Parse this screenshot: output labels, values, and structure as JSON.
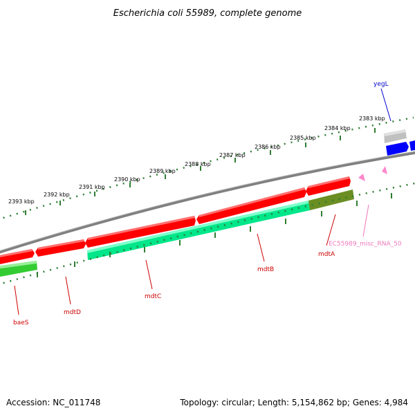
{
  "title": "Escherichia coli 55989, complete genome",
  "footer": {
    "accession": "Accession: NC_011748",
    "summary": "Topology: circular; Length: 5,154,862 bp; Genes: 4,984"
  },
  "colors": {
    "forward_cds": "#ff0000",
    "reverse_cds": "#00e68a",
    "green_gene": "#33cc33",
    "olive_gene": "#6b8e23",
    "blue_gene": "#0000ff",
    "grey_gene": "#b0b0b0",
    "misc_rna": "#ff66b2",
    "backbone": "#808080",
    "tick": "#2e7d32",
    "red_label": "#cc0000",
    "pink_label": "#ee77bb",
    "blue_label": "#0000cc"
  },
  "tick_labels": [
    "2393 kbp",
    "2392 kbp",
    "2391 kbp",
    "2390 kbp",
    "2389 kbp",
    "2388 kbp",
    "2387 kbp",
    "2386 kbp",
    "2385 kbp",
    "2384 kbp",
    "2383 kbp"
  ],
  "gene_labels": {
    "baeS": "baeS",
    "mdtD": "mdtD",
    "mdtC": "mdtC",
    "mdtB": "mdtB",
    "mdtA": "mdtA",
    "misc_rna": "EC55989_misc_RNA_50",
    "yegL": "yegL"
  }
}
